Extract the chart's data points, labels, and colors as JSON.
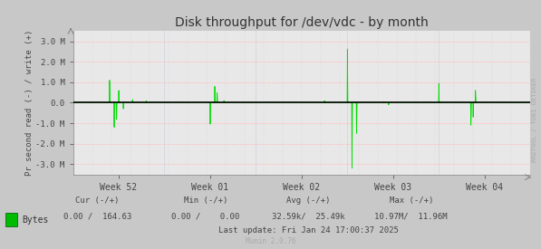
{
  "title": "Disk throughput for /dev/vdc - by month",
  "ylabel": "Pr second read (-) / write (+)",
  "background_color": "#c8c8c8",
  "plot_bg_color": "#e8e8e8",
  "grid_color_h": "#ffaaaa",
  "grid_color_v": "#aaaacc",
  "line_color": "#00dd00",
  "zero_line_color": "#000000",
  "ylim": [
    -3500000,
    3500000
  ],
  "yticks": [
    -3000000,
    -2000000,
    -1000000,
    0,
    1000000,
    2000000,
    3000000
  ],
  "ytick_labels": [
    "-3.0 M",
    "-2.0 M",
    "-1.0 M",
    "0.0",
    "1.0 M",
    "2.0 M",
    "3.0 M"
  ],
  "xtick_labels": [
    "Week 52",
    "Week 01",
    "Week 02",
    "Week 03",
    "Week 04"
  ],
  "xtick_pos": [
    0.1,
    0.3,
    0.5,
    0.7,
    0.9
  ],
  "legend_label": "Bytes",
  "legend_color": "#00bb00",
  "munin_text": "Munin 2.0.76",
  "rrdtool_text": "RRDTOOL / TOBI OETIKER",
  "footer_col1_header": "Cur (-/+)",
  "footer_col2_header": "Min (-/+)",
  "footer_col3_header": "Avg (-/+)",
  "footer_col4_header": "Max (-/+)",
  "footer_bytes_label": "Bytes",
  "footer_cur": "0.00 /  164.63",
  "footer_min": "0.00 /    0.00",
  "footer_avg": "32.59k/  25.49k",
  "footer_max": "10.97M/  11.96M",
  "footer_lastupdate": "Last update: Fri Jan 24 17:00:37 2025",
  "spike_positions": [
    0.08,
    0.09,
    0.095,
    0.1,
    0.11,
    0.13,
    0.16,
    0.3,
    0.31,
    0.315,
    0.33,
    0.55,
    0.6,
    0.61,
    0.62,
    0.68,
    0.69,
    0.8,
    0.87,
    0.875,
    0.88
  ],
  "spike_values": [
    1100000,
    -1200000,
    -800000,
    600000,
    -300000,
    150000,
    100000,
    -1050000,
    800000,
    500000,
    100000,
    100000,
    2600000,
    -3200000,
    -1500000,
    50000,
    -100000,
    950000,
    -1100000,
    -700000,
    600000
  ]
}
